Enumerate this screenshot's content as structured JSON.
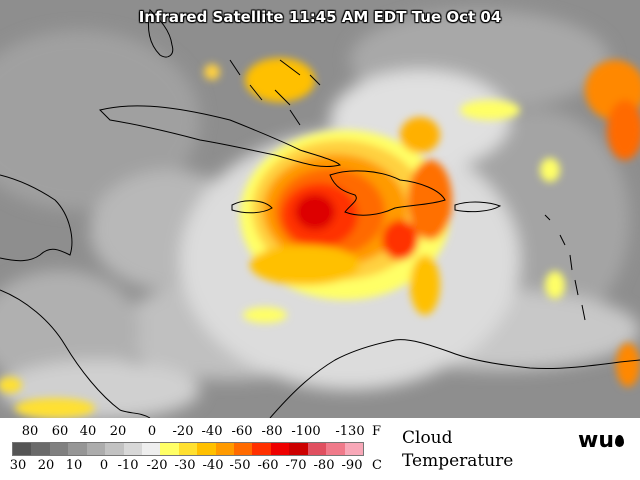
{
  "header": {
    "title": "Infrared Satellite 11:45 AM EDT Tue Oct 04"
  },
  "legend": {
    "fahrenheit_unit": "F",
    "celsius_unit": "C",
    "fahrenheit_ticks": [
      "80",
      "60",
      "40",
      "20",
      "0",
      "-20",
      "-40",
      "-60",
      "-80",
      "-100",
      "-130"
    ],
    "celsius_ticks": [
      "30",
      "20",
      "10",
      "0",
      "-10",
      "-20",
      "-30",
      "-40",
      "-50",
      "-60",
      "-70",
      "-80",
      "-90"
    ],
    "colors": [
      "#555555",
      "#6a6a6a",
      "#808080",
      "#969696",
      "#acacac",
      "#c2c2c2",
      "#d8d8d8",
      "#eeeeee",
      "#ffff66",
      "#ffe030",
      "#ffc000",
      "#ff9a00",
      "#ff6a00",
      "#ff3000",
      "#ee0000",
      "#cc0000",
      "#e05060",
      "#f07a8a",
      "#f8a8b8"
    ],
    "label_line1": "Cloud",
    "label_line2": "Temperature"
  },
  "branding": {
    "logo_text": "wu"
  }
}
